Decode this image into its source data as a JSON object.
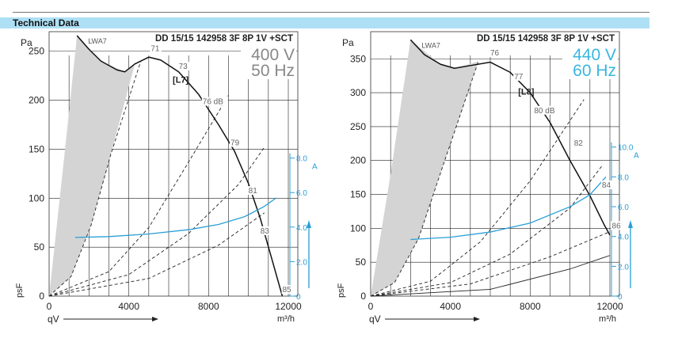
{
  "header": {
    "title": "Technical Data"
  },
  "chart_data": [
    {
      "type": "line",
      "title": "DD 15/15 142958 3F 8P 1V +SCT",
      "voltage": "400 V",
      "frequency": "50 Hz",
      "accent_color": "#888888",
      "current_color": "#2a9fd6",
      "tag": "[L7]",
      "lwa_label": "LWA7",
      "ylabel": "Pa",
      "ylabel_bottom": "psF",
      "xlabel": "qV",
      "xunit": "m³/h",
      "xlim": [
        0,
        12000
      ],
      "ylim": [
        0,
        270
      ],
      "x_ticks": [
        "0",
        "4000",
        "8000",
        "12000"
      ],
      "x_tick_values": [
        0,
        4000,
        8000,
        12000
      ],
      "y_ticks": [
        "0",
        "50",
        "100",
        "150",
        "200",
        "250"
      ],
      "y_tick_values": [
        0,
        50,
        100,
        150,
        200,
        250
      ],
      "current_unit": "A",
      "current_ticks": [
        "0",
        "2.0",
        "4.0",
        "6.0",
        "8.0"
      ],
      "current_tick_values": [
        0,
        2,
        4,
        6,
        8
      ],
      "current_max": 9.5,
      "grid": true,
      "series": [
        {
          "role": "pressure",
          "x": [
            1400,
            2000,
            2600,
            3400,
            3800,
            4300,
            5000,
            5600,
            6500,
            7500,
            8500,
            9300,
            10000,
            10600,
            11200,
            11700
          ],
          "y": [
            266,
            252,
            240,
            231,
            229,
            237,
            244,
            241,
            229,
            206,
            175,
            148,
            115,
            79,
            36,
            0
          ]
        },
        {
          "role": "current",
          "x": [
            1300,
            3000,
            5000,
            7000,
            8500,
            9800,
            10800,
            11400
          ],
          "y": [
            3.4,
            3.45,
            3.6,
            3.85,
            4.15,
            4.6,
            5.2,
            5.7
          ]
        }
      ],
      "efficiency_curves": [
        {
          "x": [
            0,
            1100,
            2100,
            3100,
            4600
          ],
          "y": [
            0,
            20,
            72,
            145,
            240
          ]
        },
        {
          "x": [
            0,
            3000,
            5000,
            7000,
            9000
          ],
          "y": [
            0,
            25,
            70,
            137,
            205
          ]
        },
        {
          "x": [
            0,
            4000,
            7000,
            9500,
            10800
          ],
          "y": [
            0,
            22,
            64,
            114,
            152
          ]
        },
        {
          "x": [
            0,
            5000,
            8500,
            10800
          ],
          "y": [
            0,
            18,
            52,
            85
          ]
        }
      ],
      "lwa_area": {
        "x_left": [
          0,
          800,
          1400
        ],
        "y_left": [
          0,
          150,
          266
        ],
        "x_right": [
          1400,
          2600,
          3800,
          4300,
          3100,
          2100,
          1100,
          0
        ],
        "y_right": [
          266,
          240,
          229,
          237,
          145,
          72,
          20,
          0
        ]
      },
      "annotations": [
        {
          "text": "71",
          "x": 5100,
          "y": 250
        },
        {
          "text": "73",
          "x": 6500,
          "y": 232
        },
        {
          "text": "76 dB",
          "x": 7700,
          "y": 196
        },
        {
          "text": "79",
          "x": 9100,
          "y": 154
        },
        {
          "text": "81",
          "x": 10000,
          "y": 105
        },
        {
          "text": "83",
          "x": 10600,
          "y": 64
        },
        {
          "text": "85",
          "x": 11700,
          "y": 4
        }
      ]
    },
    {
      "type": "line",
      "title": "DD 15/15 142958 3F 8P 1V +SCT",
      "voltage": "440 V",
      "frequency": "60 Hz",
      "accent_color": "#3ab6e0",
      "current_color": "#2a9fd6",
      "tag": "[L8]",
      "lwa_label": "LWA7",
      "ylabel": "Pa",
      "ylabel_bottom": "psF",
      "xlabel": "qV",
      "xunit": "m³/h",
      "xlim": [
        0,
        12000
      ],
      "ylim": [
        0,
        390
      ],
      "x_ticks": [
        "0",
        "4000",
        "8000",
        "12000"
      ],
      "x_tick_values": [
        0,
        4000,
        8000,
        12000
      ],
      "y_ticks": [
        "0",
        "50",
        "100",
        "150",
        "200",
        "250",
        "300",
        "350"
      ],
      "y_tick_values": [
        0,
        50,
        100,
        150,
        200,
        250,
        300,
        350
      ],
      "current_unit": "A",
      "current_ticks": [
        "0",
        "2.0",
        "4.0",
        "6.0",
        "8.0",
        "10.0"
      ],
      "current_tick_values": [
        0,
        2,
        4,
        6,
        8,
        10
      ],
      "current_max": 11,
      "grid": true,
      "series": [
        {
          "role": "pressure",
          "x": [
            2000,
            2700,
            3500,
            4200,
            5000,
            6000,
            7000,
            8000,
            9000,
            10000,
            11000,
            11700,
            12000
          ],
          "y": [
            378,
            356,
            342,
            336,
            340,
            345,
            330,
            300,
            256,
            200,
            148,
            106,
            90
          ]
        },
        {
          "role": "current",
          "x": [
            2000,
            4000,
            6000,
            8000,
            10000,
            11000,
            11800
          ],
          "y": [
            3.8,
            3.95,
            4.3,
            4.9,
            6.0,
            6.8,
            8.0
          ]
        }
      ],
      "efficiency_curves": [
        {
          "x": [
            0,
            1200,
            2400,
            3600,
            5400
          ],
          "y": [
            0,
            20,
            85,
            190,
            346
          ]
        },
        {
          "x": [
            0,
            3000,
            5500,
            8000,
            10700
          ],
          "y": [
            0,
            22,
            80,
            170,
            290
          ]
        },
        {
          "x": [
            0,
            4000,
            7000,
            10000,
            11600
          ],
          "y": [
            0,
            20,
            62,
            130,
            192
          ]
        },
        {
          "x": [
            0,
            5000,
            9000,
            12000
          ],
          "y": [
            0,
            18,
            58,
            95
          ]
        },
        {
          "x": [
            0,
            6000,
            10000,
            12000
          ],
          "y": [
            0,
            10,
            40,
            60
          ]
        }
      ],
      "lwa_area": {
        "x_left": [
          0,
          1000,
          2000
        ],
        "y_left": [
          0,
          180,
          378
        ],
        "x_right": [
          2000,
          3500,
          4200,
          5400,
          3600,
          2400,
          1200,
          0
        ],
        "y_right": [
          378,
          342,
          336,
          346,
          190,
          85,
          20,
          0
        ]
      },
      "annotations": [
        {
          "text": "76",
          "x": 6000,
          "y": 355
        },
        {
          "text": "77",
          "x": 7200,
          "y": 320
        },
        {
          "text": "80 dB",
          "x": 8200,
          "y": 270
        },
        {
          "text": "82",
          "x": 10200,
          "y": 222
        },
        {
          "text": "84",
          "x": 11600,
          "y": 160
        },
        {
          "text": "86",
          "x": 12100,
          "y": 100
        }
      ]
    }
  ]
}
